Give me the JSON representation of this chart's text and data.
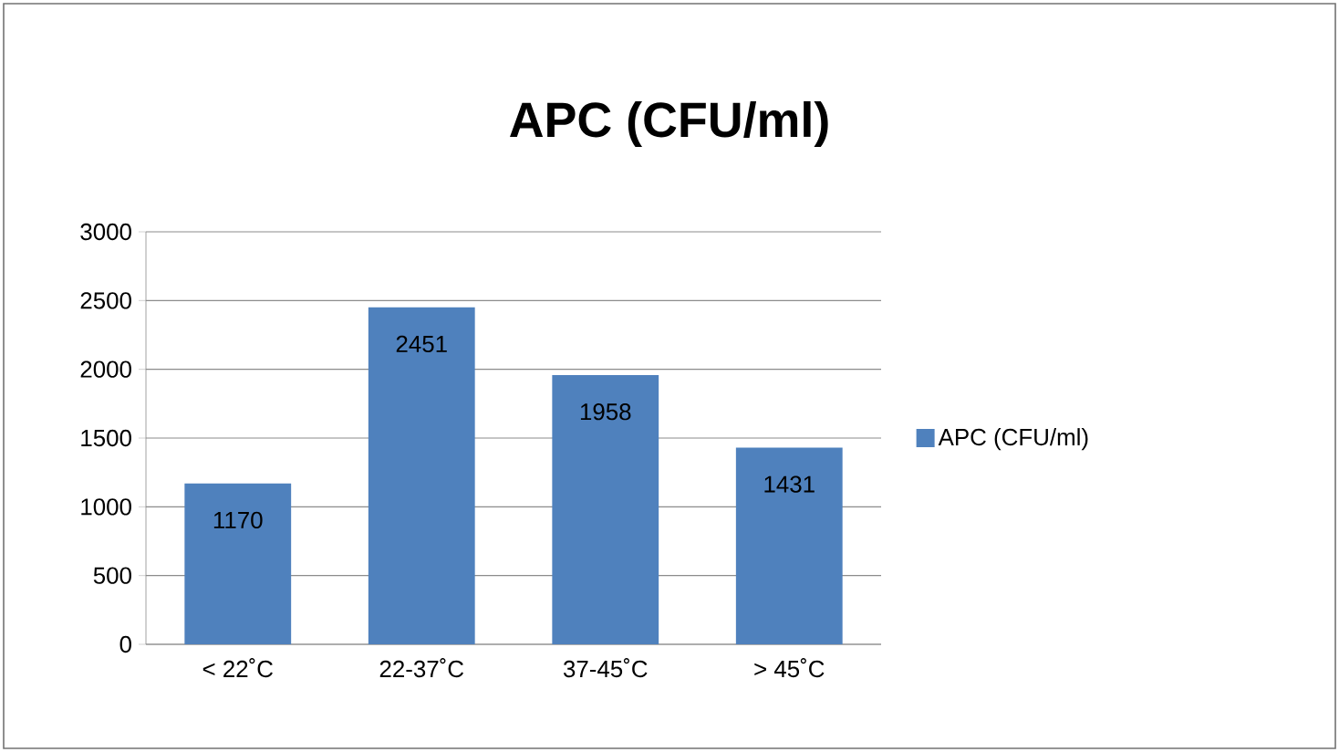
{
  "chart_data": {
    "type": "bar",
    "title": "APC (CFU/ml)",
    "categories": [
      "< 22˚C",
      "22-37˚C",
      "37-45˚C",
      "> 45˚C"
    ],
    "series": [
      {
        "name": "APC (CFU/ml)",
        "color": "#4f81bd",
        "values": [
          1170,
          2451,
          1958,
          1431
        ]
      }
    ],
    "ylim": [
      0,
      3000
    ],
    "yticks": [
      0,
      500,
      1000,
      1500,
      2000,
      2500,
      3000
    ],
    "grid": "y",
    "legend": "right",
    "data_labels": true
  }
}
